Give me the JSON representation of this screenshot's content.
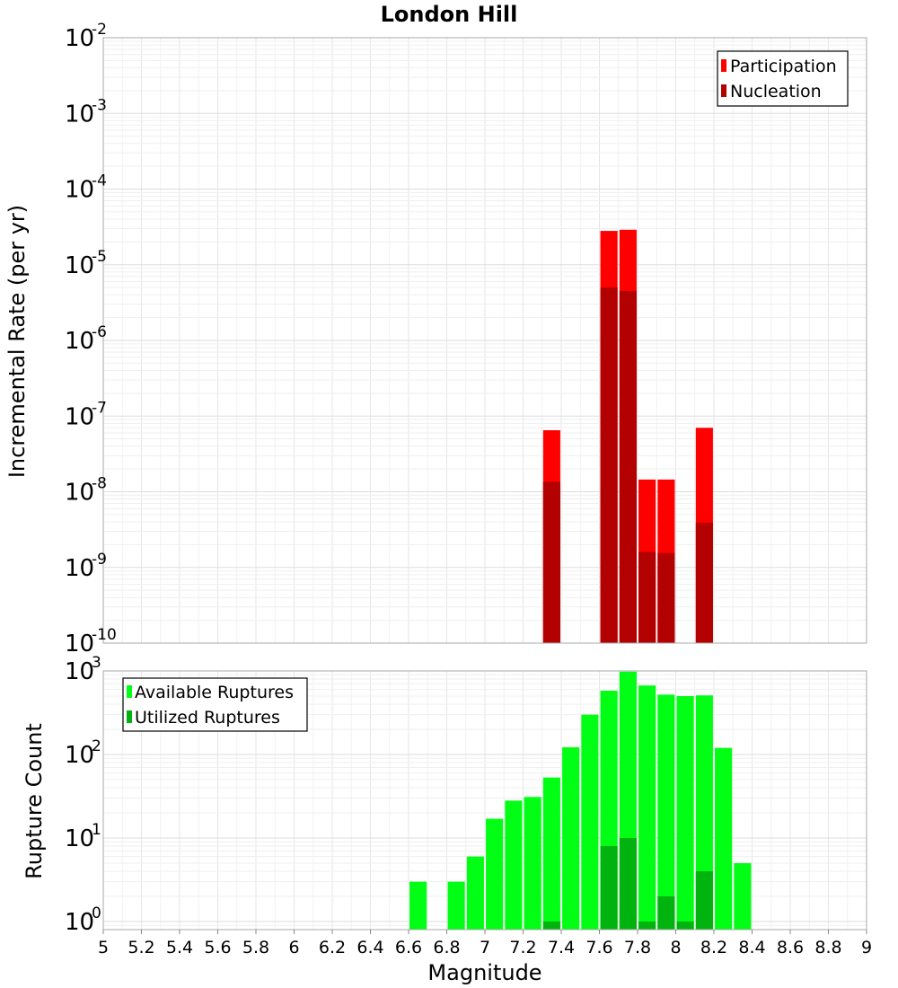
{
  "chart_data": [
    {
      "type": "bar",
      "title": "London Hill",
      "xlabel": "",
      "ylabel": "Incremental Rate (per yr)",
      "xlim": [
        5,
        9
      ],
      "ylim": [
        1e-10,
        0.01
      ],
      "y_scale": "log",
      "grid": true,
      "legend_position": "top-right",
      "bar_width": 0.09,
      "yticks": [
        {
          "base": "10",
          "exp": "-2",
          "value": 0.01
        },
        {
          "base": "10",
          "exp": "-3",
          "value": 0.001
        },
        {
          "base": "10",
          "exp": "-4",
          "value": 0.0001
        },
        {
          "base": "10",
          "exp": "-5",
          "value": 1e-05
        },
        {
          "base": "10",
          "exp": "-6",
          "value": 1e-06
        },
        {
          "base": "10",
          "exp": "-7",
          "value": 1e-07
        },
        {
          "base": "10",
          "exp": "-8",
          "value": 1e-08
        },
        {
          "base": "10",
          "exp": "-9",
          "value": 1e-09
        },
        {
          "base": "10",
          "exp": "-10",
          "value": 1e-10
        }
      ],
      "series": [
        {
          "name": "Participation",
          "color": "#ff0000",
          "x": [
            7.35,
            7.65,
            7.75,
            7.85,
            7.95,
            8.15
          ],
          "values": [
            6.5e-08,
            2.8e-05,
            2.9e-05,
            1.45e-08,
            1.45e-08,
            7e-08
          ]
        },
        {
          "name": "Nucleation",
          "color": "#b30000",
          "x": [
            7.35,
            7.65,
            7.75,
            7.85,
            7.95,
            8.15
          ],
          "values": [
            1.35e-08,
            5e-06,
            4.5e-06,
            1.6e-09,
            1.55e-09,
            3.9e-09
          ]
        }
      ]
    },
    {
      "type": "bar",
      "title": "",
      "xlabel": "Magnitude",
      "ylabel": "Rupture Count",
      "xlim": [
        5,
        9
      ],
      "ylim": [
        0.8,
        1000
      ],
      "y_scale": "log",
      "grid": true,
      "legend_position": "top-left",
      "bar_width": 0.09,
      "xticks": [
        "5",
        "5.2",
        "5.4",
        "5.6",
        "5.8",
        "6",
        "6.2",
        "6.4",
        "6.6",
        "6.8",
        "7",
        "7.2",
        "7.4",
        "7.6",
        "7.8",
        "8",
        "8.2",
        "8.4",
        "8.6",
        "8.8",
        "9"
      ],
      "yticks": [
        {
          "base": "10",
          "exp": "3",
          "value": 1000
        },
        {
          "base": "10",
          "exp": "2",
          "value": 100
        },
        {
          "base": "10",
          "exp": "1",
          "value": 10
        },
        {
          "base": "10",
          "exp": "0",
          "value": 1
        }
      ],
      "series": [
        {
          "name": "Available Ruptures",
          "color": "#00ff14",
          "x": [
            6.65,
            6.85,
            6.95,
            7.05,
            7.15,
            7.25,
            7.35,
            7.45,
            7.55,
            7.65,
            7.75,
            7.85,
            7.95,
            8.05,
            8.15,
            8.25,
            8.35
          ],
          "values": [
            3,
            3,
            6,
            17,
            28,
            31,
            53,
            122,
            300,
            580,
            980,
            670,
            520,
            500,
            510,
            120,
            5
          ]
        },
        {
          "name": "Utilized Ruptures",
          "color": "#00b30e",
          "x": [
            7.35,
            7.65,
            7.75,
            7.85,
            7.95,
            8.05,
            8.15
          ],
          "values": [
            1,
            8,
            10,
            1,
            2,
            1,
            4
          ]
        }
      ]
    }
  ]
}
